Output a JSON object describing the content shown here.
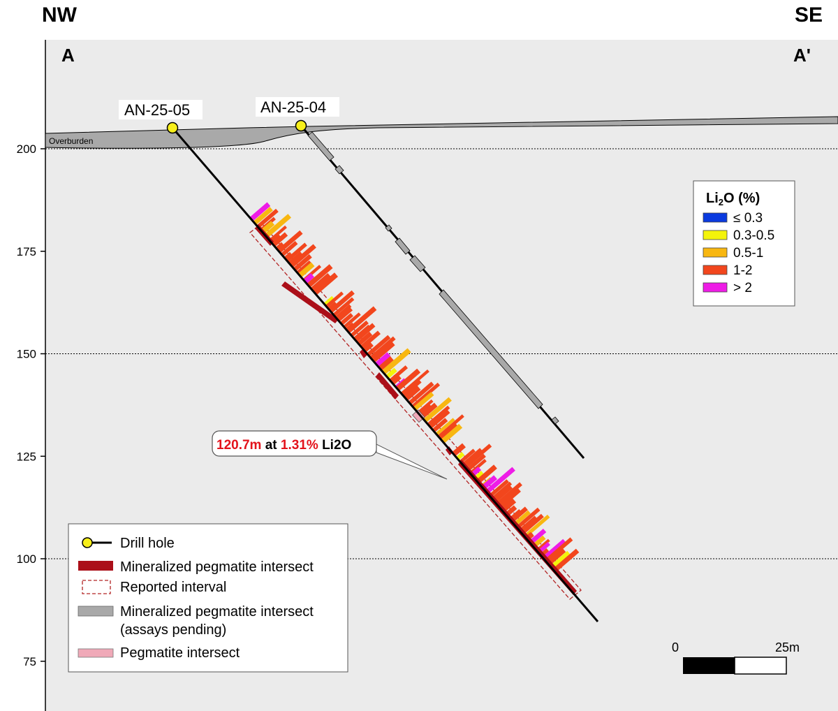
{
  "header": {
    "left_direction": "NW",
    "right_direction": "SE",
    "left_section": "A",
    "right_section": "A'"
  },
  "elevation_axis": {
    "ticks": [
      200,
      175,
      150,
      125,
      100,
      75
    ],
    "gridlines": [
      200,
      150,
      100
    ]
  },
  "overburden_label": "Overburden",
  "drill_holes": [
    {
      "name": "AN-25-05",
      "status": "assayed"
    },
    {
      "name": "AN-25-04",
      "status": "assays pending"
    }
  ],
  "callout": {
    "length": "120.7m",
    "at_word": "at",
    "grade": "1.31%",
    "element": "Li2O"
  },
  "legend_grade": {
    "title_prefix": "Li",
    "title_sub": "2",
    "title_suffix": "O (%)",
    "items": [
      {
        "label": "≤ 0.3",
        "color": "#0a3adf"
      },
      {
        "label": "0.3-0.5",
        "color": "#f4f40a"
      },
      {
        "label": "0.5-1",
        "color": "#f8b711"
      },
      {
        "label": "1-2",
        "color": "#f2461d"
      },
      {
        "label": "> 2",
        "color": "#ee1ce6"
      }
    ]
  },
  "legend_main": {
    "drill_hole": "Drill hole",
    "mineralized": "Mineralized pegmatite intersect",
    "reported": "Reported interval",
    "pending_line1": "Mineralized pegmatite intersect",
    "pending_line2": "(assays pending)",
    "pegmatite": "Pegmatite intersect"
  },
  "colors": {
    "mineralized": "#ab0f19",
    "pending": "#a9a9a9",
    "pegmatite": "#f0a9b8",
    "reported": "#b22424",
    "collar": "#f7ef1a",
    "background": "#ebebeb"
  },
  "scale_bar": {
    "start_label": "0",
    "end_label": "25m"
  }
}
